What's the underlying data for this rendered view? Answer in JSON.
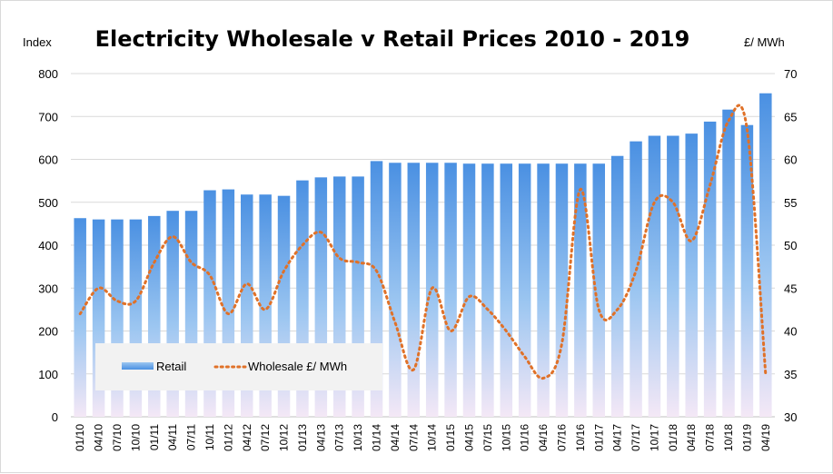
{
  "chart_data": {
    "type": "bar",
    "title": "Electricity  Wholesale v Retail Prices 2010 - 2019",
    "ylabel_left": "Index",
    "ylabel_right": "£/ MWh",
    "ylim_left": [
      0,
      800
    ],
    "ylim_right": [
      30,
      70
    ],
    "yticks_left": [
      "0",
      "100",
      "200",
      "300",
      "400",
      "500",
      "600",
      "700",
      "800"
    ],
    "yticks_right": [
      "30",
      "35",
      "40",
      "45",
      "50",
      "55",
      "60",
      "65",
      "70"
    ],
    "grid": true,
    "legend_position": "bottom-left",
    "categories": [
      "01/10",
      "04/10",
      "07/10",
      "10/10",
      "01/11",
      "04/11",
      "07/11",
      "10/11",
      "01/12",
      "04/12",
      "07/12",
      "10/12",
      "01/13",
      "04/13",
      "07/13",
      "10/13",
      "01/14",
      "04/14",
      "07/14",
      "10/14",
      "01/15",
      "04/15",
      "07/15",
      "10/15",
      "01/16",
      "04/16",
      "07/16",
      "10/16",
      "01/17",
      "04/17",
      "07/17",
      "10/17",
      "01/18",
      "04/18",
      "07/18",
      "10/18",
      "01/19",
      "04/19"
    ],
    "series": [
      {
        "name": "Retail",
        "type": "bar",
        "axis": "left",
        "color": "#5b9bd5",
        "values": [
          463,
          460,
          460,
          460,
          468,
          480,
          480,
          528,
          530,
          518,
          518,
          515,
          551,
          558,
          560,
          560,
          596,
          592,
          592,
          592,
          592,
          590,
          590,
          590,
          590,
          590,
          590,
          590,
          590,
          608,
          642,
          655,
          655,
          660,
          688,
          716,
          680,
          754
        ]
      },
      {
        "name": "Wholesale £/ MWh",
        "type": "line",
        "axis": "right",
        "color": "#ed7d31",
        "style": "dotted",
        "values": [
          42,
          45,
          43.5,
          43.5,
          48,
          51,
          48,
          46.5,
          42,
          45.5,
          42.5,
          47,
          50,
          51.5,
          48.5,
          48,
          47,
          41,
          35.5,
          45,
          40,
          44,
          42.5,
          40,
          37,
          34.5,
          38.5,
          56.5,
          42.5,
          42.5,
          47,
          55,
          55,
          50.5,
          57,
          64.5,
          63.5,
          35
        ]
      }
    ]
  }
}
